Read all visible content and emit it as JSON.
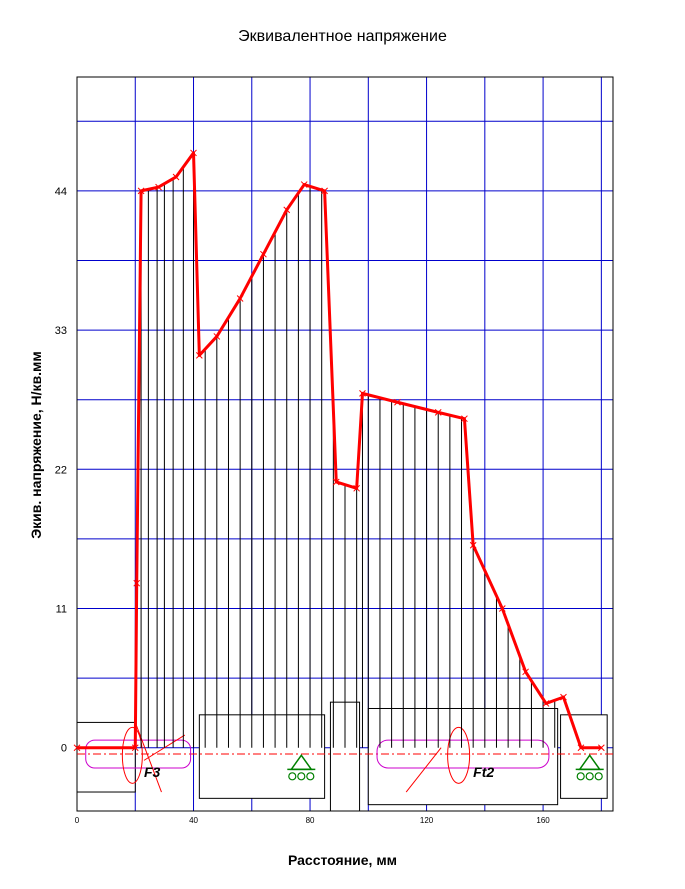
{
  "chart_data": {
    "type": "line",
    "title": "Эквивалентное напряжение",
    "xlabel": "Расстояние, мм",
    "ylabel": "Экив. напряжение, Н/кв.мм",
    "xlim": [
      0,
      184
    ],
    "ylim": [
      -5,
      53
    ],
    "x_ticks": [
      0,
      40,
      80,
      120,
      160
    ],
    "y_ticks": [
      0,
      11,
      22,
      33,
      44
    ],
    "grid": true,
    "series": [
      {
        "color": "#ff0000",
        "points": [
          [
            0,
            0
          ],
          [
            20,
            0
          ],
          [
            20.5,
            13
          ],
          [
            22,
            44
          ],
          [
            28,
            44.3
          ],
          [
            34,
            45.1
          ],
          [
            40,
            47
          ],
          [
            42,
            31
          ],
          [
            48,
            32.5
          ],
          [
            56,
            35.5
          ],
          [
            64,
            39
          ],
          [
            72,
            42.5
          ],
          [
            78,
            44.5
          ],
          [
            85,
            44
          ],
          [
            89,
            21
          ],
          [
            96,
            20.5
          ],
          [
            98,
            28
          ],
          [
            110,
            27.3
          ],
          [
            124,
            26.5
          ],
          [
            133,
            26
          ],
          [
            136,
            16
          ],
          [
            146,
            11
          ],
          [
            154,
            6
          ],
          [
            161,
            3.5
          ],
          [
            167,
            4
          ],
          [
            173,
            0
          ],
          [
            180,
            0
          ]
        ]
      }
    ],
    "shading": {
      "color": "#000000",
      "x": [
        22,
        24.5,
        27.5,
        30,
        33,
        36.5,
        40,
        44,
        48,
        52,
        56,
        60,
        64,
        68,
        72,
        76,
        80,
        84,
        88,
        92,
        96,
        98,
        100,
        104,
        108,
        112,
        116,
        120,
        124,
        128,
        132,
        136,
        140,
        144,
        148,
        152,
        156,
        160,
        164
      ]
    },
    "shaft_labels": [
      "F3",
      "Ft2"
    ],
    "colors": {
      "line": "#ff0000",
      "grid": "#0000cc",
      "hatch": "#000000",
      "axis": "#000000",
      "support": "#008000",
      "gear": "#cc00cc"
    }
  }
}
